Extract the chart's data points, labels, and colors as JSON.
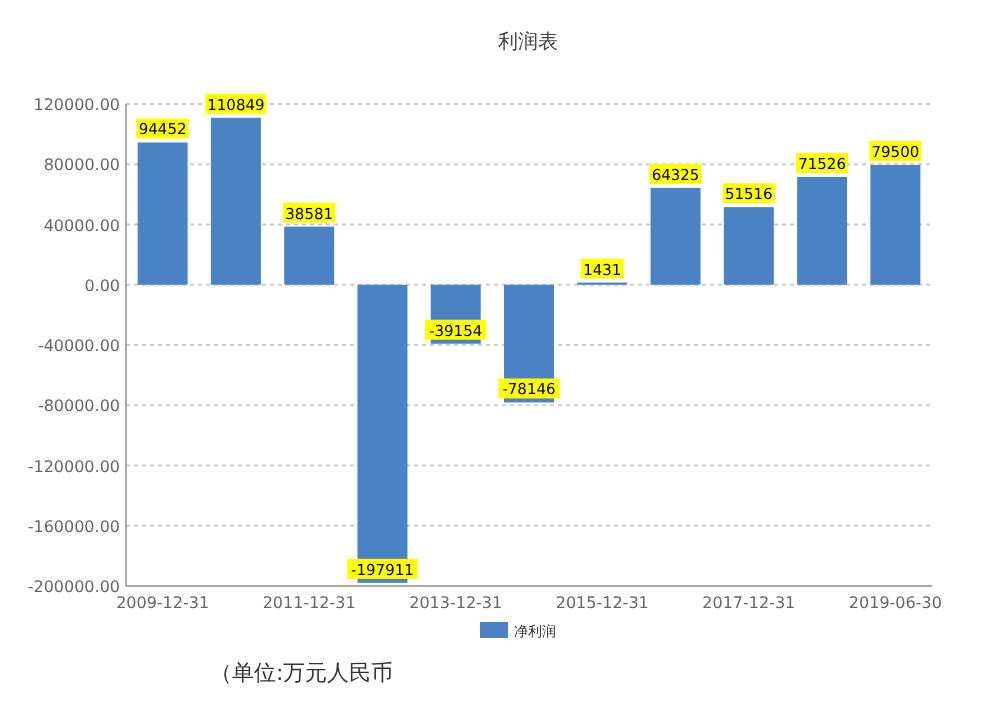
{
  "chart_data": {
    "type": "bar",
    "title": "利润表",
    "categories": [
      "2009-12-31",
      null,
      "2011-12-31",
      null,
      "2013-12-31",
      null,
      "2015-12-31",
      null,
      "2017-12-31",
      null,
      "2019-06-30"
    ],
    "series": [
      {
        "name": "净利润",
        "color": "#4a82c3",
        "values": [
          94452,
          110849,
          38581,
          -197911,
          -39154,
          -78146,
          1431,
          64325,
          51516,
          71526,
          79500
        ]
      }
    ],
    "ylim": [
      -200000,
      120000
    ],
    "yticks": [
      {
        "value": -200000,
        "label": "-200000.00"
      },
      {
        "value": -160000,
        "label": "-160000.00"
      },
      {
        "value": -120000,
        "label": "-120000.00"
      },
      {
        "value": -80000,
        "label": "-80000.00"
      },
      {
        "value": -40000,
        "label": "-40000.00"
      },
      {
        "value": 0,
        "label": "0.00"
      },
      {
        "value": 40000,
        "label": "40000.00"
      },
      {
        "value": 80000,
        "label": "80000.00"
      },
      {
        "value": 120000,
        "label": "120000.00"
      }
    ],
    "grid": "y",
    "legend": "bottom",
    "data_labels": true,
    "annotations": [
      "（单位:万元人民币"
    ]
  }
}
